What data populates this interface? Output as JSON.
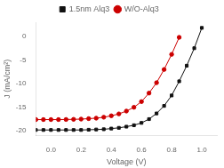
{
  "chart_data": {
    "type": "line",
    "xlabel": "Voltage (V)",
    "ylabel": "J (mA/cm²)",
    "x": [
      -0.1,
      -0.05,
      0.0,
      0.05,
      0.1,
      0.15,
      0.2,
      0.25,
      0.3,
      0.35,
      0.4,
      0.45,
      0.5,
      0.55,
      0.6,
      0.65,
      0.7,
      0.75,
      0.8,
      0.85,
      0.9,
      0.95,
      1.0,
      1.04
    ],
    "series": [
      {
        "name": "1.5nm Alq3",
        "color": "#111111",
        "marker": "square",
        "values": [
          -19.8,
          -19.8,
          -19.8,
          -19.8,
          -19.8,
          -19.8,
          -19.8,
          -19.75,
          -19.7,
          -19.65,
          -19.5,
          -19.35,
          -19.1,
          -18.8,
          -18.3,
          -17.5,
          -16.3,
          -14.7,
          -12.5,
          -9.5,
          -6.2,
          -2.5,
          1.8,
          null
        ]
      },
      {
        "name": "W/O-Alq3",
        "color": "#cc0000",
        "marker": "circle",
        "values": [
          -17.6,
          -17.6,
          -17.6,
          -17.6,
          -17.58,
          -17.55,
          -17.5,
          -17.4,
          -17.3,
          -17.1,
          -16.8,
          -16.4,
          -15.8,
          -15.0,
          -13.8,
          -12.0,
          -9.8,
          -7.0,
          -3.8,
          -0.2,
          null,
          null,
          null,
          null
        ]
      }
    ],
    "xlim": [
      -0.1,
      1.1
    ],
    "xticks": [
      {
        "value": 0,
        "label": "0.0"
      },
      0.2,
      0.4,
      0.6,
      0.8,
      {
        "value": 1,
        "label": "1.0"
      }
    ],
    "ylim": [
      -21,
      3
    ],
    "yticks": [
      0,
      -5,
      -10,
      -15,
      -20
    ],
    "grid": false,
    "legend": "top"
  }
}
